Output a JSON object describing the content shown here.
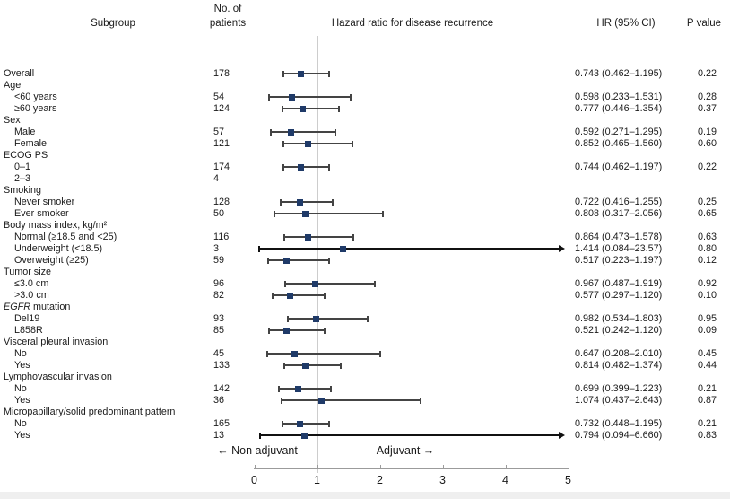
{
  "header": {
    "subgroup": "Subgroup",
    "patients_line1": "No. of",
    "patients_line2": "patients",
    "plot_title": "Hazard ratio for disease recurrence",
    "hr_ci": "HR (95% CI)",
    "p_value": "P value"
  },
  "axis": {
    "min": 0,
    "max": 5,
    "ticks": [
      "0",
      "1",
      "2",
      "3",
      "4",
      "5"
    ],
    "reference_value": 1,
    "left_label": "← Non adjuvant",
    "right_label": "Adjuvant →"
  },
  "colors": {
    "marker": "#1f3a68",
    "error_bar": "#444444",
    "arrow": "#111111",
    "reference_line": "#cdcdcd",
    "axis_line": "#9b9b9b",
    "text": "#1a1a1a",
    "bottom_strip": "#efefef"
  },
  "chart_data": {
    "type": "forest",
    "title": "Hazard ratio for disease recurrence",
    "xlabel_left": "← Non adjuvant",
    "xlabel_right": "Adjuvant →",
    "x_axis": {
      "min": 0,
      "max": 5,
      "ticks": [
        0,
        1,
        2,
        3,
        4,
        5
      ],
      "reference_line": 1
    },
    "rows": [
      {
        "label": "Overall",
        "indent": 0,
        "n": "178",
        "hr": 0.743,
        "ci_low": 0.462,
        "ci_high": 1.195,
        "hr_text": "0.743 (0.462–1.195)",
        "p": "0.22"
      },
      {
        "label": "Age",
        "indent": 0
      },
      {
        "label": "<60 years",
        "indent": 1,
        "n": "54",
        "hr": 0.598,
        "ci_low": 0.233,
        "ci_high": 1.531,
        "hr_text": "0.598 (0.233–1.531)",
        "p": "0.28"
      },
      {
        "label": "≥60 years",
        "indent": 1,
        "n": "124",
        "hr": 0.777,
        "ci_low": 0.446,
        "ci_high": 1.354,
        "hr_text": "0.777 (0.446–1.354)",
        "p": "0.37"
      },
      {
        "label": "Sex",
        "indent": 0
      },
      {
        "label": "Male",
        "indent": 1,
        "n": "57",
        "hr": 0.592,
        "ci_low": 0.271,
        "ci_high": 1.295,
        "hr_text": "0.592 (0.271–1.295)",
        "p": "0.19"
      },
      {
        "label": "Female",
        "indent": 1,
        "n": "121",
        "hr": 0.852,
        "ci_low": 0.465,
        "ci_high": 1.56,
        "hr_text": "0.852 (0.465–1.560)",
        "p": "0.60"
      },
      {
        "label": "ECOG PS",
        "indent": 0
      },
      {
        "label": "0–1",
        "indent": 1,
        "n": "174",
        "hr": 0.744,
        "ci_low": 0.462,
        "ci_high": 1.197,
        "hr_text": "0.744 (0.462–1.197)",
        "p": "0.22"
      },
      {
        "label": "2–3",
        "indent": 1,
        "n": "4"
      },
      {
        "label": "Smoking",
        "indent": 0
      },
      {
        "label": "Never smoker",
        "indent": 1,
        "n": "128",
        "hr": 0.722,
        "ci_low": 0.416,
        "ci_high": 1.255,
        "hr_text": "0.722 (0.416–1.255)",
        "p": "0.25"
      },
      {
        "label": "Ever smoker",
        "indent": 1,
        "n": "50",
        "hr": 0.808,
        "ci_low": 0.317,
        "ci_high": 2.056,
        "hr_text": "0.808 (0.317–2.056)",
        "p": "0.65"
      },
      {
        "label": "Body mass index, kg/m²",
        "indent": 0
      },
      {
        "label": "Normal (≥18.5 and <25)",
        "indent": 1,
        "n": "116",
        "hr": 0.864,
        "ci_low": 0.473,
        "ci_high": 1.578,
        "hr_text": "0.864 (0.473–1.578)",
        "p": "0.63"
      },
      {
        "label": "Underweight (<18.5)",
        "indent": 1,
        "n": "3",
        "hr": 1.414,
        "ci_low": 0.084,
        "ci_high": 23.57,
        "arrow_right": true,
        "hr_text": "1.414 (0.084–23.57)",
        "p": "0.80"
      },
      {
        "label": "Overweight (≥25)",
        "indent": 1,
        "n": "59",
        "hr": 0.517,
        "ci_low": 0.223,
        "ci_high": 1.197,
        "hr_text": "0.517 (0.223–1.197)",
        "p": "0.12"
      },
      {
        "label": "Tumor size",
        "indent": 0
      },
      {
        "label": "≤3.0 cm",
        "indent": 1,
        "n": "96",
        "hr": 0.967,
        "ci_low": 0.487,
        "ci_high": 1.919,
        "hr_text": "0.967 (0.487–1.919)",
        "p": "0.92"
      },
      {
        "label": ">3.0 cm",
        "indent": 1,
        "n": "82",
        "hr": 0.577,
        "ci_low": 0.297,
        "ci_high": 1.12,
        "hr_text": "0.577 (0.297–1.120)",
        "p": "0.10"
      },
      {
        "label": "EGFR mutation",
        "indent": 0,
        "italic_first_word": true
      },
      {
        "label": "Del19",
        "indent": 1,
        "n": "93",
        "hr": 0.982,
        "ci_low": 0.534,
        "ci_high": 1.803,
        "hr_text": "0.982 (0.534–1.803)",
        "p": "0.95"
      },
      {
        "label": "L858R",
        "indent": 1,
        "n": "85",
        "hr": 0.521,
        "ci_low": 0.242,
        "ci_high": 1.12,
        "hr_text": "0.521 (0.242–1.120)",
        "p": "0.09"
      },
      {
        "label": "Visceral pleural invasion",
        "indent": 0
      },
      {
        "label": "No",
        "indent": 1,
        "n": "45",
        "hr": 0.647,
        "ci_low": 0.208,
        "ci_high": 2.01,
        "hr_text": "0.647 (0.208–2.010)",
        "p": "0.45"
      },
      {
        "label": "Yes",
        "indent": 1,
        "n": "133",
        "hr": 0.814,
        "ci_low": 0.482,
        "ci_high": 1.374,
        "hr_text": "0.814 (0.482–1.374)",
        "p": "0.44"
      },
      {
        "label": "Lymphovascular invasion",
        "indent": 0
      },
      {
        "label": "No",
        "indent": 1,
        "n": "142",
        "hr": 0.699,
        "ci_low": 0.399,
        "ci_high": 1.223,
        "hr_text": "0.699 (0.399–1.223)",
        "p": "0.21"
      },
      {
        "label": "Yes",
        "indent": 1,
        "n": "36",
        "hr": 1.074,
        "ci_low": 0.437,
        "ci_high": 2.643,
        "hr_text": "1.074 (0.437–2.643)",
        "p": "0.87"
      },
      {
        "label": "Micropapillary/solid predominant pattern",
        "indent": 0
      },
      {
        "label": "No",
        "indent": 1,
        "n": "165",
        "hr": 0.732,
        "ci_low": 0.448,
        "ci_high": 1.195,
        "hr_text": "0.732 (0.448–1.195)",
        "p": "0.21"
      },
      {
        "label": "Yes",
        "indent": 1,
        "n": "13",
        "hr": 0.794,
        "ci_low": 0.094,
        "ci_high": 6.66,
        "arrow_right": true,
        "hr_text": "0.794 (0.094–6.660)",
        "p": "0.83"
      }
    ]
  }
}
